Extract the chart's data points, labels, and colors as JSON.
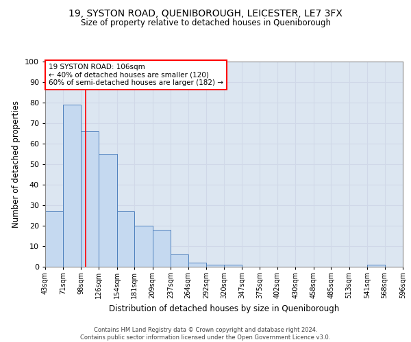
{
  "title": "19, SYSTON ROAD, QUENIBOROUGH, LEICESTER, LE7 3FX",
  "subtitle": "Size of property relative to detached houses in Queniborough",
  "xlabel": "Distribution of detached houses by size in Queniborough",
  "ylabel": "Number of detached properties",
  "footer_line1": "Contains HM Land Registry data © Crown copyright and database right 2024.",
  "footer_line2": "Contains public sector information licensed under the Open Government Licence v3.0.",
  "annotation_line1": "19 SYSTON ROAD: 106sqm",
  "annotation_line2": "← 40% of detached houses are smaller (120)",
  "annotation_line3": "60% of semi-detached houses are larger (182) →",
  "property_size": 106,
  "bin_edges": [
    43,
    71,
    98,
    126,
    154,
    181,
    209,
    237,
    264,
    292,
    320,
    347,
    375,
    402,
    430,
    458,
    485,
    513,
    541,
    568,
    596
  ],
  "bar_heights": [
    27,
    79,
    66,
    55,
    27,
    20,
    18,
    6,
    2,
    1,
    1,
    0,
    0,
    0,
    0,
    0,
    0,
    0,
    1,
    0
  ],
  "bar_face_color": "#c5d9f0",
  "bar_edge_color": "#4f81bd",
  "vline_color": "red",
  "vline_x": 106,
  "annotation_box_edge_color": "red",
  "grid_color": "#d0d8e8",
  "background_color": "#dce6f1",
  "ylim": [
    0,
    100
  ],
  "yticks": [
    0,
    10,
    20,
    30,
    40,
    50,
    60,
    70,
    80,
    90,
    100
  ]
}
